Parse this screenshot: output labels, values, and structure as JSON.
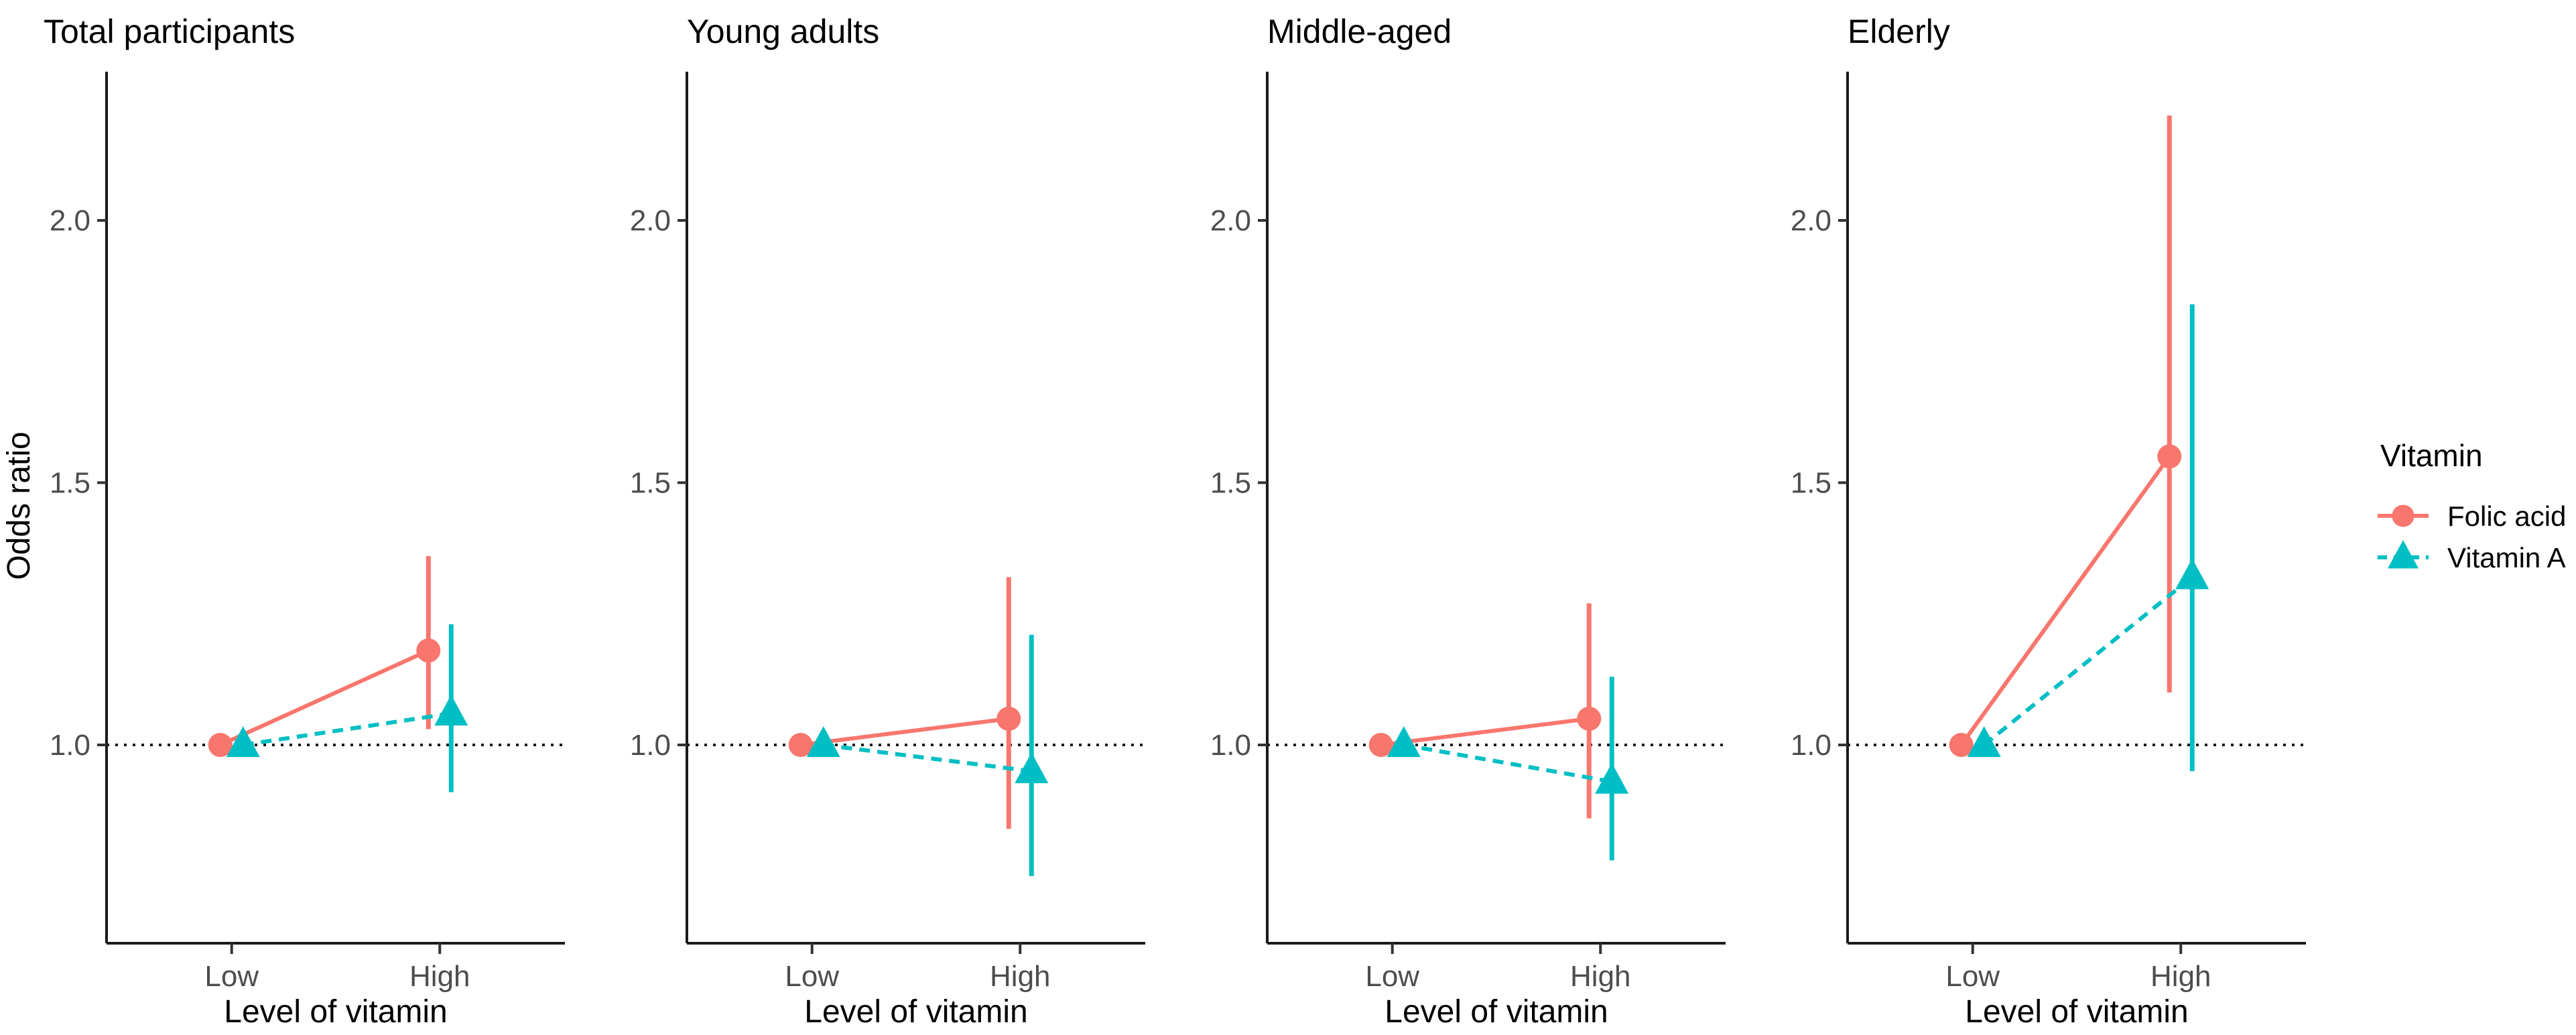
{
  "chart_data": {
    "type": "line",
    "title": "",
    "xlabel": "Level of vitamin",
    "ylabel": "Odds ratio",
    "categories": [
      "Low",
      "High"
    ],
    "ytick_labels": [
      "1.0",
      "1.5",
      "2.0"
    ],
    "yticks": [
      1.0,
      1.5,
      2.0
    ],
    "ylim": [
      0.62,
      2.28
    ],
    "reference_line": 1.0,
    "grid": false,
    "legend": {
      "title": "Vitamin",
      "position": "right",
      "entries": [
        {
          "label": "Folic acid",
          "color": "#F8766D",
          "marker": "circle",
          "line_style": "solid"
        },
        {
          "label": "Vitamin A",
          "color": "#00BFC4",
          "marker": "triangle",
          "line_style": "dashed"
        }
      ]
    },
    "facets": [
      {
        "title": "Total participants",
        "series": [
          {
            "name": "Folic acid",
            "values": [
              1.0,
              1.18
            ],
            "ci_low": [
              null,
              1.03
            ],
            "ci_high": [
              null,
              1.36
            ]
          },
          {
            "name": "Vitamin A",
            "values": [
              1.0,
              1.06
            ],
            "ci_low": [
              null,
              0.91
            ],
            "ci_high": [
              null,
              1.23
            ]
          }
        ]
      },
      {
        "title": "Young adults",
        "series": [
          {
            "name": "Folic acid",
            "values": [
              1.0,
              1.05
            ],
            "ci_low": [
              null,
              0.84
            ],
            "ci_high": [
              null,
              1.32
            ]
          },
          {
            "name": "Vitamin A",
            "values": [
              1.0,
              0.95
            ],
            "ci_low": [
              null,
              0.75
            ],
            "ci_high": [
              null,
              1.21
            ]
          }
        ]
      },
      {
        "title": "Middle-aged",
        "series": [
          {
            "name": "Folic acid",
            "values": [
              1.0,
              1.05
            ],
            "ci_low": [
              null,
              0.86
            ],
            "ci_high": [
              null,
              1.27
            ]
          },
          {
            "name": "Vitamin A",
            "values": [
              1.0,
              0.93
            ],
            "ci_low": [
              null,
              0.78
            ],
            "ci_high": [
              null,
              1.13
            ]
          }
        ]
      },
      {
        "title": "Elderly",
        "series": [
          {
            "name": "Folic acid",
            "values": [
              1.0,
              1.55
            ],
            "ci_low": [
              null,
              1.1
            ],
            "ci_high": [
              null,
              2.2
            ]
          },
          {
            "name": "Vitamin A",
            "values": [
              1.0,
              1.32
            ],
            "ci_low": [
              null,
              0.95
            ],
            "ci_high": [
              null,
              1.84
            ]
          }
        ]
      }
    ]
  }
}
